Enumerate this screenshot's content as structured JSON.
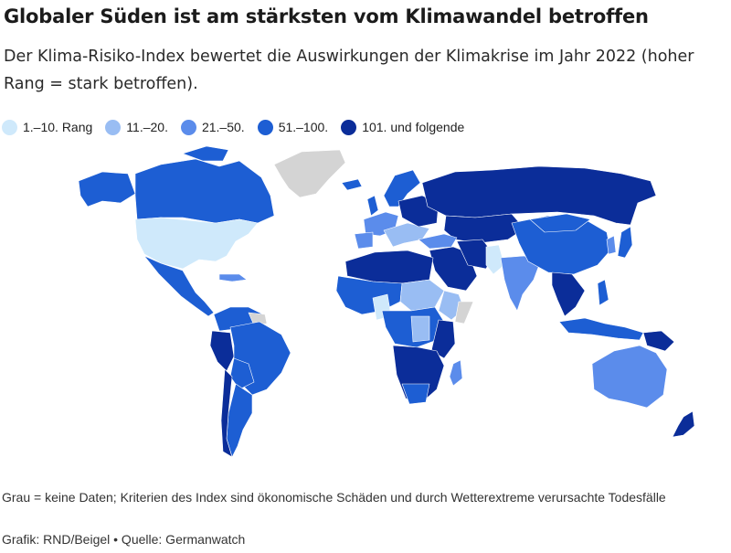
{
  "title": "Globaler Süden ist am stärksten vom Klimawandel betroffen",
  "subtitle": "Der Klima-Risiko-Index bewertet die Auswirkungen der Klimakrise im Jahr 2022 (hoher Rang = stark betroffen).",
  "legend": [
    {
      "label": "1.–10. Rang",
      "color": "#cfe9fb"
    },
    {
      "label": "11.–20.",
      "color": "#99bdf3"
    },
    {
      "label": "21.–50.",
      "color": "#5b8ceb"
    },
    {
      "label": "51.–100.",
      "color": "#1d5ed3"
    },
    {
      "label": "101. und folgende",
      "color": "#0b2d99"
    }
  ],
  "no_data_color": "#d4d4d4",
  "footnote": "Grau = keine Daten; Kriterien des Index sind ökonomische Schäden und durch Wetterextreme verursachte Todesfälle",
  "credits": "Grafik: RND/Beigel • Quelle: Germanwatch"
}
